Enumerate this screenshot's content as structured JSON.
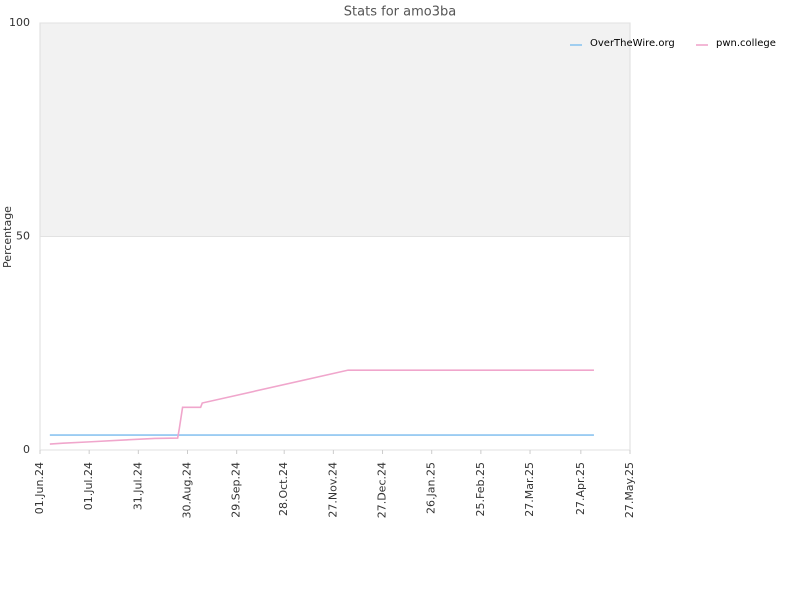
{
  "chart_data": {
    "type": "line",
    "title": "Stats for amo3ba",
    "y_label": "Percentage",
    "xlim": [
      "2024-06-01",
      "2025-05-27"
    ],
    "xticks": [
      {
        "value": "2024-06-01",
        "label": "01.Jun.24"
      },
      {
        "value": "2024-07-01",
        "label": "01.Jul.24"
      },
      {
        "value": "2024-07-31",
        "label": "31.Jul.24"
      },
      {
        "value": "2024-08-30",
        "label": "30.Aug.24"
      },
      {
        "value": "2024-09-29",
        "label": "29.Sep.24"
      },
      {
        "value": "2024-10-28",
        "label": "28.Oct.24"
      },
      {
        "value": "2024-11-27",
        "label": "27.Nov.24"
      },
      {
        "value": "2024-12-27",
        "label": "27.Dec.24"
      },
      {
        "value": "2025-01-26",
        "label": "26.Jan.25"
      },
      {
        "value": "2025-02-25",
        "label": "25.Feb.25"
      },
      {
        "value": "2025-03-27",
        "label": "27.Mar.25"
      },
      {
        "value": "2025-04-27",
        "label": "27.Apr.25"
      },
      {
        "value": "2025-05-27",
        "label": "27.May.25"
      }
    ],
    "ylim": [
      0,
      100
    ],
    "yticks": [
      0,
      50,
      100
    ],
    "shaded_band": [
      50,
      100
    ],
    "legend": "top-right",
    "series": [
      {
        "name": "OverTheWire.org",
        "color": "#8cc4f0",
        "x": [
          "2024-06-07",
          "2025-05-05"
        ],
        "values": [
          3.5,
          3.5
        ]
      },
      {
        "name": "pwn.college",
        "color": "#f0a6cc",
        "x": [
          "2024-06-07",
          "2024-06-15",
          "2024-07-01",
          "2024-07-20",
          "2024-08-10",
          "2024-08-24",
          "2024-08-25",
          "2024-08-27",
          "2024-09-07",
          "2024-09-08",
          "2024-12-06",
          "2025-05-05"
        ],
        "values": [
          1.4,
          1.6,
          1.9,
          2.3,
          2.7,
          2.8,
          5,
          10,
          10,
          11,
          18.7,
          18.7
        ]
      }
    ]
  }
}
